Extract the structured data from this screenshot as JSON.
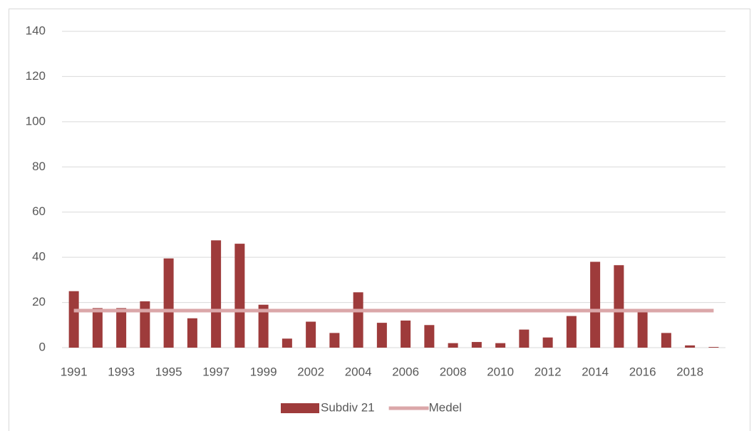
{
  "chart_data": {
    "type": "bar",
    "categories": [
      "1991",
      null,
      "1993",
      null,
      "1995",
      null,
      "1997",
      null,
      "1999",
      null,
      "2002",
      null,
      "2004",
      null,
      "2006",
      null,
      "2008",
      null,
      "2010",
      null,
      "2012",
      null,
      "2014",
      null,
      "2016",
      null,
      "2018",
      null
    ],
    "series": [
      {
        "name": "Subdiv 21",
        "type": "bar",
        "color": "#9e3b3b",
        "values": [
          25,
          17.5,
          17.5,
          20.5,
          39.5,
          13,
          47.5,
          46,
          19,
          4,
          11.5,
          6.5,
          24.5,
          11,
          12,
          10,
          2,
          2.5,
          2,
          8,
          4.5,
          14,
          38,
          36.5,
          16.5,
          6.5,
          1,
          0.3
        ]
      },
      {
        "name": "Medel",
        "type": "line",
        "color": "#dba7a9",
        "values": [
          16.4,
          16.4,
          16.4,
          16.4,
          16.4,
          16.4,
          16.4,
          16.4,
          16.4,
          16.4,
          16.4,
          16.4,
          16.4,
          16.4,
          16.4,
          16.4,
          16.4,
          16.4,
          16.4,
          16.4,
          16.4,
          16.4,
          16.4,
          16.4,
          16.4,
          16.4,
          16.4,
          16.4
        ]
      }
    ],
    "ylim": [
      0,
      140
    ],
    "yticks": [
      0,
      20,
      40,
      60,
      80,
      100,
      120,
      140
    ],
    "grid": true,
    "legend": "bottom"
  }
}
